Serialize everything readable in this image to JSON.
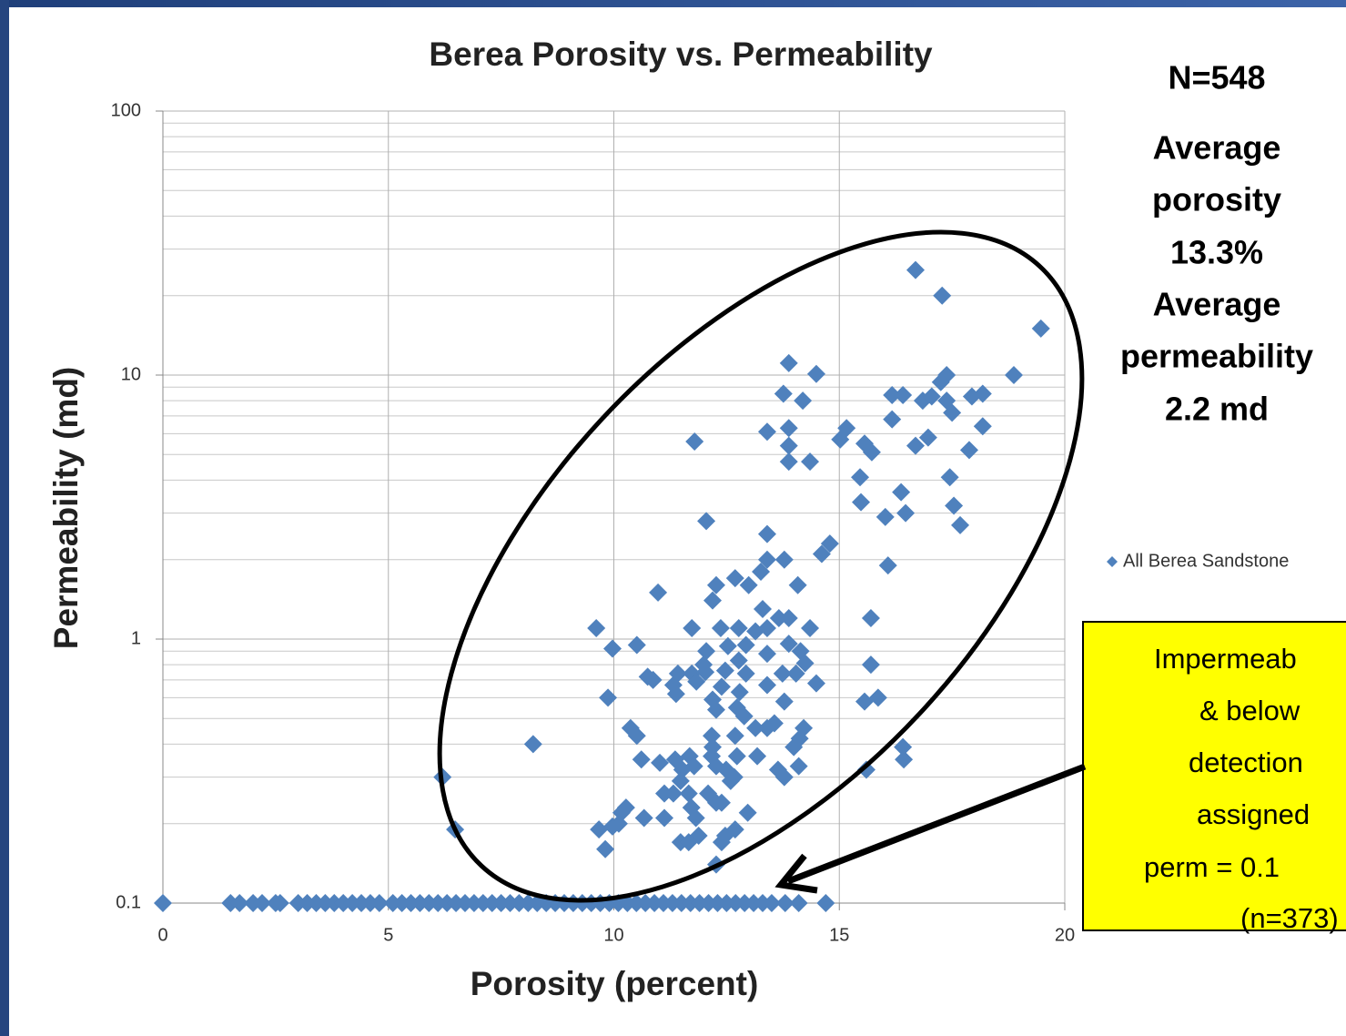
{
  "chart_data": {
    "type": "scatter",
    "title": "Berea Porosity vs. Permeability",
    "x_label": "Porosity (percent)",
    "y_label": "Permeability (md)",
    "xlim": [
      0,
      20
    ],
    "xticks": [
      0,
      5,
      10,
      15,
      20
    ],
    "ylim": [
      0.1,
      100
    ],
    "yticks": [
      0.1,
      1,
      10,
      100
    ],
    "log_y": true,
    "grid": true,
    "legend": "right",
    "annotations": [
      "N=548",
      "Average",
      "porosity",
      "13.3%",
      "Average",
      "permeability",
      "2.2 md"
    ],
    "callout": [
      "Impermeab",
      "& below",
      "detection",
      "assigned",
      "perm = 0.1",
      "(n=373)"
    ],
    "series": [
      {
        "name": "All Berea Sandstone",
        "color": "#4f81bd",
        "x": [
          16.69,
          17.28,
          19.47,
          13.88,
          14.49,
          18.87,
          17.38,
          17.25,
          13.76,
          14.19,
          16.17,
          16.41,
          16.85,
          17.05,
          17.38,
          17.94,
          18.18,
          17.5,
          16.17,
          18.18,
          13.88,
          13.4,
          15.16,
          15.02,
          11.79,
          15.56,
          15.72,
          13.88,
          16.69,
          16.97,
          17.88,
          13.88,
          14.35,
          17.45,
          15.46,
          15.48,
          16.37,
          16.02,
          16.47,
          17.54,
          17.68,
          12.05,
          13.4,
          14.79,
          14.61,
          13.4,
          13.78,
          16.08,
          13.26,
          12.69,
          12.99,
          14.08,
          12.27,
          10.98,
          12.19,
          13.3,
          13.66,
          15.7,
          13.88,
          11.73,
          12.37,
          12.77,
          9.61,
          14.35,
          13.14,
          13.4,
          9.97,
          10.51,
          12.05,
          12.53,
          12.93,
          13.88,
          14.14,
          13.4,
          12.77,
          15.7,
          11.99,
          14.24,
          11.42,
          11.73,
          12.03,
          12.47,
          12.93,
          13.74,
          14.04,
          10.75,
          10.87,
          11.83,
          11.32,
          13.4,
          14.49,
          12.39,
          12.79,
          11.38,
          9.87,
          12.19,
          13.78,
          15.56,
          15.86,
          12.73,
          12.27,
          12.89,
          13.56,
          13.4,
          13.14,
          10.37,
          10.51,
          12.17,
          12.69,
          14.21,
          14.12,
          8.21,
          12.19,
          13.99,
          16.41,
          16.43,
          12.17,
          13.18,
          12.73,
          11.68,
          11.36,
          10.61,
          11.02,
          11.78,
          14.1,
          12.27,
          11.52,
          12.49,
          13.64,
          15.6,
          6.2,
          13.78,
          11.48,
          12.59,
          12.67,
          11.32,
          11.66,
          11.12,
          12.09,
          12.39,
          12.27,
          10.27,
          11.72,
          12.97,
          10.17,
          10.67,
          11.12,
          11.82,
          10.11,
          9.97,
          6.48,
          9.67,
          12.69,
          12.47,
          11.88,
          11.48,
          11.66,
          12.39,
          9.81,
          12.27,
          0,
          1.5,
          1.7,
          2.0,
          2.2,
          2.5,
          2.6,
          3.0,
          3.2,
          3.4,
          3.6,
          3.8,
          4.0,
          4.2,
          4.4,
          4.6,
          4.8,
          5.1,
          5.3,
          5.5,
          5.7,
          5.9,
          6.1,
          6.3,
          6.5,
          6.7,
          6.9,
          7.1,
          7.3,
          7.5,
          7.7,
          7.9,
          8.1,
          8.3,
          8.5,
          8.7,
          8.9,
          9.1,
          9.3,
          9.5,
          9.7,
          9.9,
          10.1,
          10.3,
          10.5,
          10.7,
          10.9,
          11.1,
          11.3,
          11.5,
          11.7,
          11.9,
          12.1,
          12.3,
          12.5,
          12.7,
          12.9,
          13.1,
          13.3,
          13.5,
          13.8,
          14.1,
          14.7
        ],
        "values": [
          25,
          20,
          15,
          11.1,
          10.1,
          10,
          10,
          9.4,
          8.5,
          8,
          8.4,
          8.4,
          8,
          8.3,
          8,
          8.3,
          8.5,
          7.2,
          6.8,
          6.4,
          6.3,
          6.1,
          6.3,
          5.7,
          5.6,
          5.5,
          5.1,
          5.4,
          5.4,
          5.8,
          5.2,
          4.7,
          4.7,
          4.1,
          4.1,
          3.3,
          3.6,
          2.9,
          3,
          3.2,
          2.7,
          2.8,
          2.5,
          2.3,
          2.1,
          2,
          2,
          1.9,
          1.8,
          1.7,
          1.6,
          1.6,
          1.6,
          1.5,
          1.4,
          1.3,
          1.2,
          1.2,
          1.2,
          1.1,
          1.1,
          1.1,
          1.1,
          1.1,
          1.07,
          1.1,
          0.92,
          0.95,
          0.9,
          0.94,
          0.95,
          0.96,
          0.9,
          0.88,
          0.83,
          0.8,
          0.8,
          0.81,
          0.74,
          0.74,
          0.75,
          0.76,
          0.74,
          0.74,
          0.74,
          0.72,
          0.7,
          0.69,
          0.67,
          0.67,
          0.68,
          0.66,
          0.63,
          0.62,
          0.6,
          0.59,
          0.58,
          0.58,
          0.6,
          0.55,
          0.54,
          0.51,
          0.48,
          0.46,
          0.46,
          0.46,
          0.43,
          0.43,
          0.43,
          0.46,
          0.42,
          0.4,
          0.39,
          0.39,
          0.39,
          0.35,
          0.36,
          0.36,
          0.36,
          0.36,
          0.35,
          0.35,
          0.34,
          0.33,
          0.33,
          0.33,
          0.32,
          0.32,
          0.32,
          0.32,
          0.3,
          0.3,
          0.29,
          0.29,
          0.3,
          0.26,
          0.26,
          0.26,
          0.26,
          0.24,
          0.24,
          0.23,
          0.23,
          0.22,
          0.22,
          0.21,
          0.21,
          0.21,
          0.2,
          0.195,
          0.19,
          0.19,
          0.19,
          0.18,
          0.18,
          0.17,
          0.17,
          0.17,
          0.16,
          0.14,
          0.1,
          0.1,
          0.1,
          0.1,
          0.1,
          0.1,
          0.1,
          0.1,
          0.1,
          0.1,
          0.1,
          0.1,
          0.1,
          0.1,
          0.1,
          0.1,
          0.1,
          0.1,
          0.1,
          0.1,
          0.1,
          0.1,
          0.1,
          0.1,
          0.1,
          0.1,
          0.1,
          0.1,
          0.1,
          0.1,
          0.1,
          0.1,
          0.1,
          0.1,
          0.1,
          0.1,
          0.1,
          0.1,
          0.1,
          0.1,
          0.1,
          0.1,
          0.1,
          0.1,
          0.1,
          0.1,
          0.1,
          0.1,
          0.1,
          0.1,
          0.1,
          0.1,
          0.1,
          0.1,
          0.1,
          0.1,
          0.1,
          0.1,
          0.1,
          0.1,
          0.1,
          0.1,
          0.1
        ]
      }
    ]
  }
}
